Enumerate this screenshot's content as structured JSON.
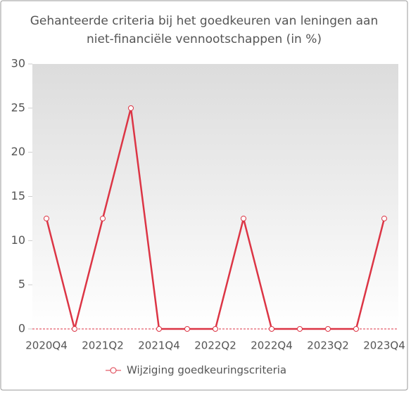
{
  "chart_data": {
    "type": "line",
    "title": [
      "Gehanteerde criteria bij het goedkeuren van leningen aan",
      "niet-financiële vennootschappen (in %)"
    ],
    "categories": [
      "2020Q4",
      null,
      "2021Q2",
      null,
      "2021Q4",
      null,
      "2022Q2",
      null,
      "2022Q4",
      null,
      "2023Q2",
      null,
      "2023Q4"
    ],
    "series": [
      {
        "name": "Wijziging goedkeuringscriteria",
        "color": "#dc3545",
        "values": [
          12.5,
          0,
          12.5,
          25,
          0,
          0,
          0,
          12.5,
          0,
          0,
          0,
          0,
          12.5
        ]
      }
    ],
    "ylim": [
      0,
      30
    ],
    "yticks": [
      0,
      5,
      10,
      15,
      20,
      25,
      30
    ],
    "legend": "bottom"
  }
}
